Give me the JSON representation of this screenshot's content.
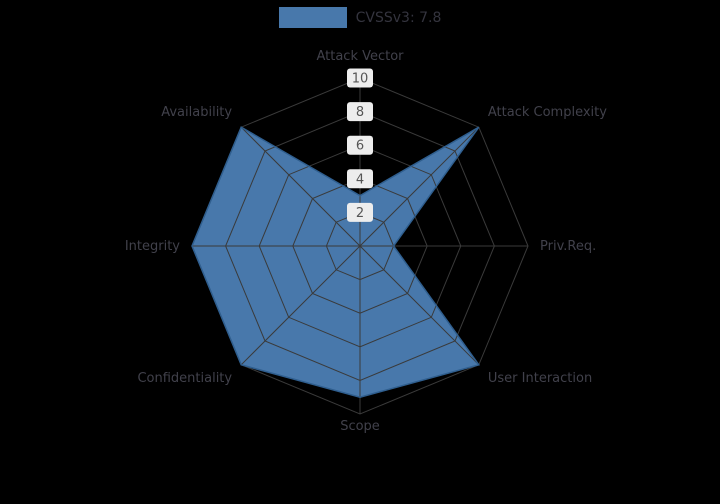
{
  "legend": {
    "label": "CVSSv3: 7.8"
  },
  "chart_data": {
    "type": "radar",
    "title": "",
    "categories": [
      "Attack Vector",
      "Attack Complexity",
      "Priv.Req.",
      "User Interaction",
      "Scope",
      "Confidentiality",
      "Integrity",
      "Availability"
    ],
    "series": [
      {
        "name": "CVSSv3: 7.8",
        "values": [
          3,
          10,
          2,
          10,
          9,
          10,
          10,
          10
        ]
      }
    ],
    "ticks": [
      2,
      4,
      6,
      8,
      10
    ],
    "rlim": [
      0,
      10
    ],
    "grid": true,
    "legend_position": "top-center",
    "colors": {
      "fill": "#4878ab",
      "outline": "#2f5e8e",
      "grid": "#3a3a3a",
      "axis_label": "#41414b",
      "tick_text": "#555555",
      "tick_box": "#ededed",
      "legend_text": "#34343e",
      "background": "#000000"
    }
  }
}
